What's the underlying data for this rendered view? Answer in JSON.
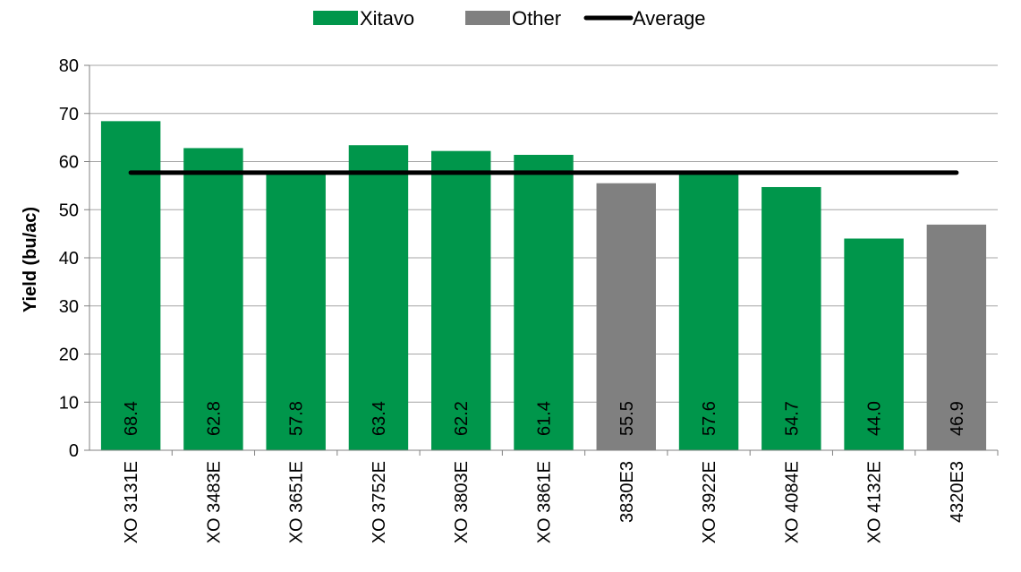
{
  "chart_data": {
    "type": "bar",
    "title": "",
    "xlabel": "",
    "ylabel": "Yield (bu/ac)",
    "ylim": [
      0,
      80
    ],
    "yticks": [
      0,
      10,
      20,
      30,
      40,
      50,
      60,
      70,
      80
    ],
    "grid": true,
    "legend_position": "top-center",
    "categories": [
      "XO 3131E",
      "XO 3483E",
      "XO 3651E",
      "XO 3752E",
      "XO 3803E",
      "XO 3861E",
      "3830E3",
      "XO 3922E",
      "XO 4084E",
      "XO 4132E",
      "4320E3"
    ],
    "values": [
      68.4,
      62.8,
      57.8,
      63.4,
      62.2,
      61.4,
      55.5,
      57.6,
      54.7,
      44.0,
      46.9
    ],
    "value_labels": [
      "68.4",
      "62.8",
      "57.8",
      "63.4",
      "62.2",
      "61.4",
      "55.5",
      "57.6",
      "54.7",
      "44.0",
      "46.9"
    ],
    "groups": [
      "Xitavo",
      "Xitavo",
      "Xitavo",
      "Xitavo",
      "Xitavo",
      "Xitavo",
      "Other",
      "Xitavo",
      "Xitavo",
      "Xitavo",
      "Other"
    ],
    "average": 57.7,
    "legend": [
      {
        "name": "Xitavo",
        "color": "#00964b",
        "kind": "bar"
      },
      {
        "name": "Other",
        "color": "#808080",
        "kind": "bar"
      },
      {
        "name": "Average",
        "color": "#000000",
        "kind": "line"
      }
    ]
  }
}
